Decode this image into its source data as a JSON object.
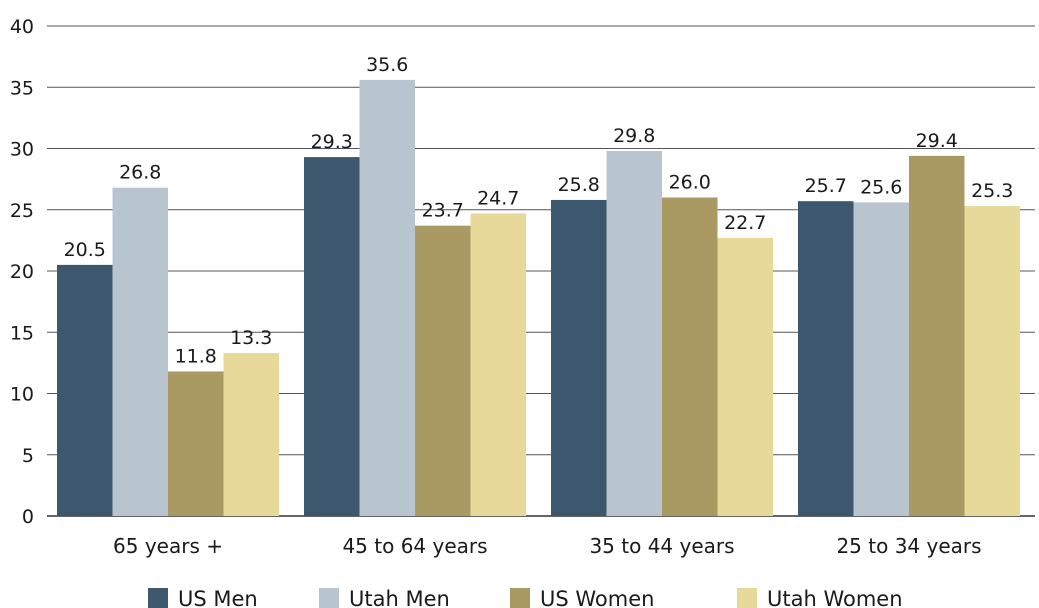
{
  "chart_data": {
    "type": "bar",
    "title": "",
    "xlabel": "",
    "ylabel": "",
    "ylim": [
      0,
      40
    ],
    "yticks": [
      0,
      5,
      10,
      15,
      20,
      25,
      30,
      35,
      40
    ],
    "grid": true,
    "legend_position": "bottom",
    "categories": [
      "65 years +",
      "45 to 64 years",
      "35 to 44 years",
      "25 to 34 years"
    ],
    "series": [
      {
        "name": "US Men",
        "color": "#3d586e",
        "values": [
          20.5,
          29.3,
          25.8,
          25.7
        ],
        "labels": [
          "20.5",
          "29.3",
          "25.8",
          "25.7"
        ]
      },
      {
        "name": "Utah Men",
        "color": "#b8c5cf",
        "values": [
          26.8,
          35.6,
          29.8,
          25.6
        ],
        "labels": [
          "26.8",
          "35.6",
          "29.8",
          "25.6"
        ]
      },
      {
        "name": "US Women",
        "color": "#a99a63",
        "values": [
          11.8,
          23.7,
          26.0,
          29.4
        ],
        "labels": [
          "11.8",
          "23.7",
          "26.0",
          "29.4"
        ]
      },
      {
        "name": "Utah Women",
        "color": "#e6d999",
        "values": [
          13.3,
          24.7,
          22.7,
          25.3
        ],
        "labels": [
          "13.3",
          "24.7",
          "22.7",
          "25.3"
        ]
      }
    ]
  }
}
